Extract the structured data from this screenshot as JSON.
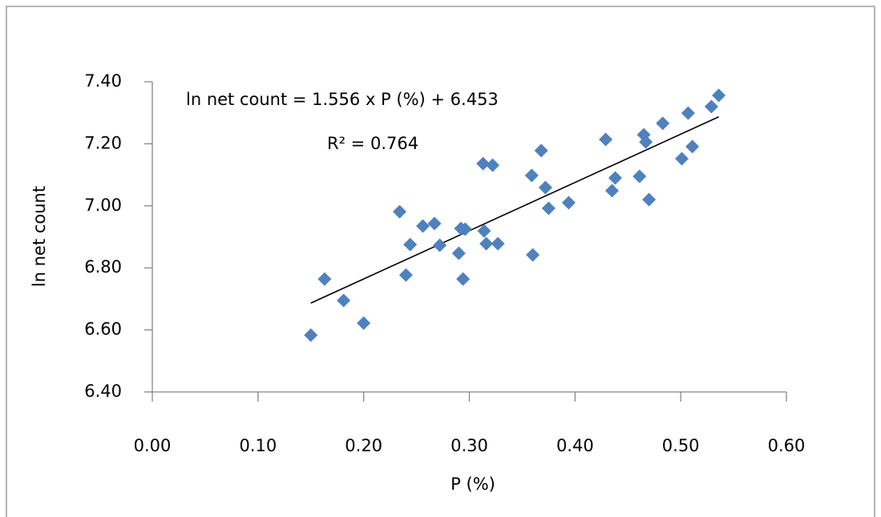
{
  "chart_data": {
    "type": "scatter",
    "xlabel": "P (%)",
    "ylabel": "ln net count",
    "equation": "ln net count = 1.556 x P (%) + 6.453",
    "r_squared": "R² = 0.764",
    "trendline": {
      "slope": 1.556,
      "intercept": 6.453,
      "color": "#000000"
    },
    "xlim": [
      0,
      0.6
    ],
    "ylim": [
      6.4,
      7.4
    ],
    "xticks": [
      {
        "value": 0,
        "label": "0.00"
      },
      {
        "value": 0.1,
        "label": "0.10"
      },
      {
        "value": 0.2,
        "label": "0.20"
      },
      {
        "value": 0.3,
        "label": "0.30"
      },
      {
        "value": 0.4,
        "label": "0.40"
      },
      {
        "value": 0.5,
        "label": "0.50"
      },
      {
        "value": 0.6,
        "label": "0.60"
      }
    ],
    "yticks": [
      {
        "value": 6.4,
        "label": "6.40"
      },
      {
        "value": 6.6,
        "label": "6.60"
      },
      {
        "value": 6.8,
        "label": "6.80"
      },
      {
        "value": 7.0,
        "label": "7.00"
      },
      {
        "value": 7.2,
        "label": "7.20"
      },
      {
        "value": 7.4,
        "label": "7.40"
      }
    ],
    "color": "#4f81bd",
    "x": [
      0.15,
      0.163,
      0.181,
      0.2,
      0.234,
      0.24,
      0.244,
      0.256,
      0.267,
      0.272,
      0.29,
      0.292,
      0.296,
      0.294,
      0.313,
      0.322,
      0.314,
      0.316,
      0.327,
      0.36,
      0.359,
      0.368,
      0.372,
      0.375,
      0.394,
      0.429,
      0.435,
      0.438,
      0.461,
      0.465,
      0.467,
      0.47,
      0.483,
      0.501,
      0.507,
      0.511,
      0.529,
      0.536
    ],
    "y": [
      6.583,
      6.764,
      6.695,
      6.622,
      6.981,
      6.777,
      6.875,
      6.935,
      6.943,
      6.873,
      6.847,
      6.927,
      6.925,
      6.764,
      7.136,
      7.131,
      6.919,
      6.878,
      6.878,
      6.842,
      7.098,
      7.178,
      7.059,
      6.992,
      7.01,
      7.214,
      7.049,
      7.09,
      7.095,
      7.229,
      7.206,
      7.02,
      7.266,
      7.152,
      7.299,
      7.191,
      7.32,
      7.356
    ]
  }
}
